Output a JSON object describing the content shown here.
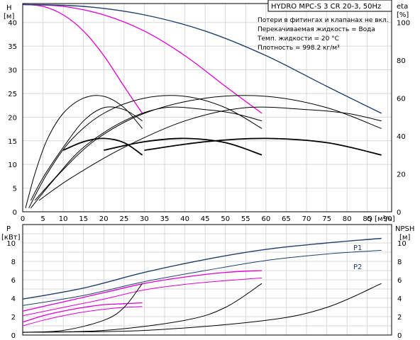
{
  "title_box": "HYDRO MPC-S 3 CR 20-3, 50Hz",
  "notes": [
    "Потери в фитингах и клапанах не вкл.",
    "Перекачиваемая жидкость = Вода",
    "Темп. жидкости = 20 °C",
    "Плотность = 998.2 кг/м³"
  ],
  "colors": {
    "dark_blue": "#1f3f6e",
    "magenta": "#e000d0",
    "black": "#000000",
    "grid": "#d9d9d9"
  },
  "chart_data": [
    {
      "type": "line",
      "title": "HYDRO MPC-S 3 CR 20-3, 50Hz",
      "xlabel": "Q [м³/ч]",
      "ylabel_left": "H [м]",
      "ylabel_right": "eta [%]",
      "xlim": [
        0,
        91
      ],
      "ylim_left": [
        0,
        44
      ],
      "ylim_right_ticks": [
        0,
        20,
        40,
        60,
        80,
        100
      ],
      "x_ticks": [
        0,
        5,
        10,
        15,
        20,
        25,
        30,
        35,
        40,
        45,
        50,
        55,
        60,
        65,
        70,
        75,
        80,
        85,
        90
      ],
      "y_left_ticks": [
        0,
        5,
        10,
        15,
        20,
        25,
        30,
        35,
        40
      ],
      "grid": true,
      "series": [
        {
          "axis": "left",
          "color": "#e000d0",
          "width": 1.3,
          "x": [
            0,
            5,
            10,
            15,
            20,
            25,
            29.5
          ],
          "y": [
            43.8,
            43.4,
            41.6,
            38.2,
            33.0,
            26.5,
            20.8
          ]
        },
        {
          "axis": "left",
          "color": "#e000d0",
          "width": 1.3,
          "x": [
            0,
            10,
            20,
            30,
            40,
            50,
            59
          ],
          "y": [
            43.8,
            43.4,
            41.6,
            38.2,
            33.0,
            26.5,
            20.8
          ]
        },
        {
          "axis": "left",
          "color": "#1f3f6e",
          "width": 1.4,
          "x": [
            0,
            15,
            30,
            45,
            60,
            75,
            88.5
          ],
          "y": [
            43.8,
            43.4,
            41.6,
            38.2,
            33.0,
            26.5,
            20.8
          ]
        },
        {
          "axis": "right",
          "color": "#000000",
          "width": 1.0,
          "x": [
            0.7,
            3,
            6,
            10,
            15,
            20,
            25,
            29.5
          ],
          "y": [
            2,
            20,
            38,
            52,
            60,
            61,
            55,
            44
          ]
        },
        {
          "axis": "right",
          "color": "#000000",
          "width": 1.0,
          "x": [
            1.5,
            6,
            12,
            20,
            30,
            40,
            50,
            59
          ],
          "y": [
            2,
            20,
            38,
            52,
            60,
            61,
            55,
            44
          ]
        },
        {
          "axis": "right",
          "color": "#000000",
          "width": 1.0,
          "x": [
            2,
            9,
            18,
            30,
            45,
            60,
            75,
            88.5
          ],
          "y": [
            2,
            20,
            38,
            52,
            60,
            61,
            55,
            44
          ]
        },
        {
          "axis": "right",
          "color": "#000000",
          "width": 1.0,
          "x": [
            2,
            5,
            10,
            15,
            20,
            25,
            29.5
          ],
          "y": [
            6,
            18,
            34,
            48,
            55,
            54,
            48
          ]
        },
        {
          "axis": "right",
          "color": "#000000",
          "width": 1.0,
          "x": [
            3,
            8,
            15,
            25,
            35,
            45,
            52,
            59
          ],
          "y": [
            6,
            18,
            34,
            48,
            55,
            54,
            52,
            48
          ]
        },
        {
          "axis": "right",
          "color": "#000000",
          "width": 1.0,
          "x": [
            4,
            12,
            25,
            40,
            55,
            70,
            80,
            88.5
          ],
          "y": [
            6,
            18,
            34,
            48,
            55,
            54,
            52,
            48
          ]
        },
        {
          "axis": "left",
          "color": "#000000",
          "width": 1.8,
          "x": [
            10,
            15,
            20,
            25,
            29.5
          ],
          "y": [
            13.0,
            14.8,
            15.5,
            14.6,
            12.0
          ]
        },
        {
          "axis": "left",
          "color": "#000000",
          "width": 1.8,
          "x": [
            20,
            30,
            40,
            50,
            59
          ],
          "y": [
            13.0,
            14.8,
            15.5,
            14.6,
            12.0
          ]
        },
        {
          "axis": "left",
          "color": "#000000",
          "width": 1.8,
          "x": [
            30,
            45,
            60,
            75,
            88.5
          ],
          "y": [
            13.0,
            14.8,
            15.5,
            14.6,
            12.0
          ]
        }
      ]
    },
    {
      "type": "line",
      "ylabel_left": "P [кВт]",
      "ylabel_right": "NPSH [м]",
      "xlim": [
        0,
        91
      ],
      "ylim_left": [
        0,
        12
      ],
      "ylim_right": [
        0,
        12
      ],
      "y_left_ticks": [
        0,
        2,
        4,
        6,
        8,
        10
      ],
      "y_right_ticks": [
        0,
        2,
        4,
        6,
        8,
        10
      ],
      "grid": true,
      "annotations": [
        "P1",
        "P2"
      ],
      "series": [
        {
          "name": "P1",
          "axis": "left",
          "color": "#1f3f6e",
          "width": 1.4,
          "x": [
            0,
            15,
            30,
            45,
            60,
            75,
            88.5
          ],
          "y": [
            3.9,
            5.1,
            6.8,
            8.2,
            9.3,
            10.0,
            10.5
          ]
        },
        {
          "name": "P2",
          "axis": "left",
          "color": "#1f3f6e",
          "width": 1.0,
          "x": [
            0,
            15,
            30,
            45,
            60,
            75,
            88.5
          ],
          "y": [
            3.2,
            4.3,
            5.8,
            7.0,
            8.1,
            8.8,
            9.2
          ]
        },
        {
          "axis": "left",
          "color": "#e000d0",
          "width": 1.3,
          "x": [
            0,
            10,
            20,
            30,
            40,
            50,
            59
          ],
          "y": [
            2.6,
            3.6,
            4.6,
            5.6,
            6.3,
            6.8,
            7.0
          ]
        },
        {
          "axis": "left",
          "color": "#e000d0",
          "width": 1.0,
          "x": [
            0,
            10,
            20,
            30,
            40,
            50,
            59
          ],
          "y": [
            2.1,
            3.0,
            3.9,
            4.9,
            5.5,
            5.9,
            6.2
          ]
        },
        {
          "axis": "left",
          "color": "#e000d0",
          "width": 1.3,
          "x": [
            0,
            5,
            10,
            15,
            20,
            25,
            29.5
          ],
          "y": [
            1.4,
            2.1,
            2.6,
            3.0,
            3.3,
            3.4,
            3.5
          ]
        },
        {
          "axis": "left",
          "color": "#e000d0",
          "width": 1.0,
          "x": [
            0,
            5,
            10,
            15,
            20,
            25,
            29.5
          ],
          "y": [
            1.0,
            1.6,
            2.1,
            2.5,
            2.8,
            3.0,
            3.1
          ]
        },
        {
          "axis": "right",
          "color": "#000000",
          "width": 1.0,
          "x": [
            0,
            10,
            20,
            25,
            29.5
          ],
          "y": [
            0.3,
            0.5,
            1.6,
            3.0,
            5.6
          ]
        },
        {
          "axis": "right",
          "color": "#000000",
          "width": 1.0,
          "x": [
            0,
            20,
            40,
            50,
            59
          ],
          "y": [
            0.3,
            0.5,
            1.6,
            3.0,
            5.6
          ]
        },
        {
          "axis": "right",
          "color": "#000000",
          "width": 1.0,
          "x": [
            0,
            30,
            60,
            75,
            88.5
          ],
          "y": [
            0.3,
            0.5,
            1.6,
            3.0,
            5.6
          ]
        }
      ]
    }
  ]
}
